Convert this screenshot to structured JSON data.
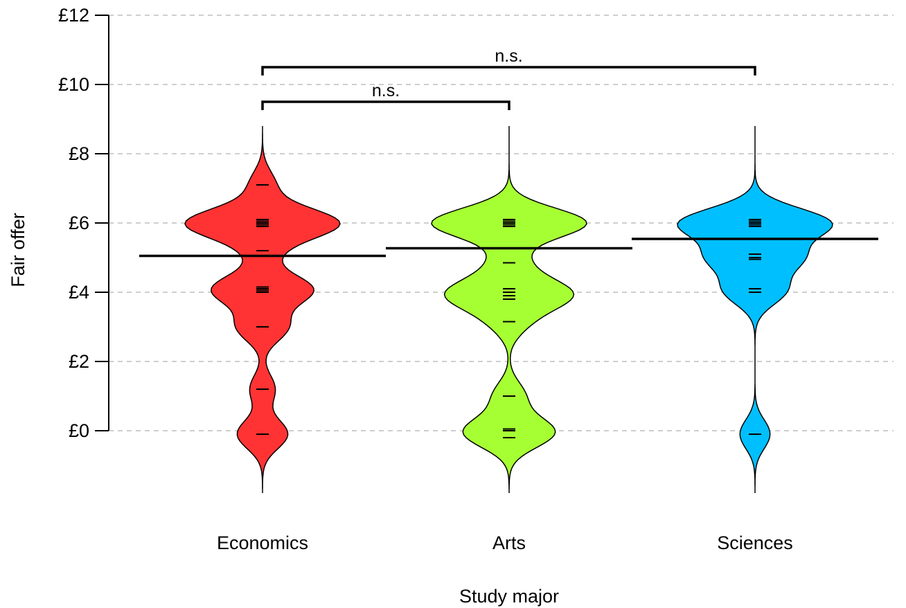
{
  "chart_data": {
    "type": "violin",
    "title": "",
    "xlabel": "Study major",
    "ylabel": "Fair offer",
    "ylim": [
      0,
      12
    ],
    "yticks": [
      {
        "value": 0,
        "label": "£0"
      },
      {
        "value": 2,
        "label": "£2"
      },
      {
        "value": 4,
        "label": "£4"
      },
      {
        "value": 6,
        "label": "£6"
      },
      {
        "value": 8,
        "label": "£8"
      },
      {
        "value": 10,
        "label": "£10"
      },
      {
        "value": 12,
        "label": "£12"
      }
    ],
    "grid": "horizontal-dashed",
    "categories": [
      "Economics",
      "Arts",
      "Sciences"
    ],
    "colors": [
      "#ff3333",
      "#a6ff33",
      "#00bfff"
    ],
    "means": [
      5.05,
      5.27,
      5.54
    ],
    "points": [
      [
        -0.1,
        -0.1,
        1.2,
        3.0,
        3.0,
        4.0,
        4.05,
        4.1,
        4.15,
        5.2,
        5.9,
        5.95,
        6.0,
        6.0,
        6.05,
        6.1,
        7.1
      ],
      [
        -0.2,
        0.0,
        0.05,
        1.0,
        3.15,
        3.8,
        3.9,
        4.0,
        4.1,
        4.85,
        5.9,
        5.95,
        6.0,
        6.05,
        6.1
      ],
      [
        -0.1,
        4.0,
        4.1,
        4.95,
        5.0,
        5.1,
        5.9,
        5.95,
        6.0,
        6.05,
        6.1
      ]
    ],
    "density_range": [
      -1.8,
      8.8
    ],
    "comparisons": [
      {
        "from": "Economics",
        "to": "Arts",
        "label": "n.s.",
        "y": 9.5
      },
      {
        "from": "Economics",
        "to": "Sciences",
        "label": "n.s.",
        "y": 10.5
      }
    ]
  }
}
